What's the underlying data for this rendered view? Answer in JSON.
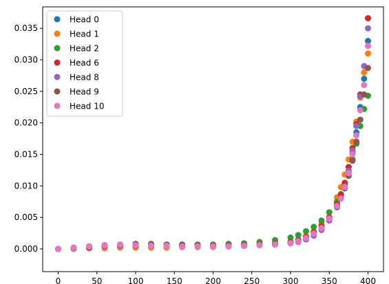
{
  "chart_data": {
    "type": "scatter",
    "x": [
      0,
      20,
      40,
      60,
      80,
      100,
      120,
      140,
      160,
      180,
      200,
      220,
      240,
      260,
      280,
      300,
      310,
      320,
      330,
      340,
      350,
      360,
      365,
      370,
      375,
      380,
      385,
      390,
      395,
      400
    ],
    "series": [
      {
        "name": "Head 0",
        "color": "#1f77b4",
        "values": [
          0,
          0.0001,
          0.0002,
          0.0003,
          0.0003,
          0.0003,
          0.0003,
          0.0003,
          0.0003,
          0.0003,
          0.0004,
          0.0004,
          0.0005,
          0.0006,
          0.0008,
          0.0011,
          0.0014,
          0.0019,
          0.0026,
          0.0036,
          0.005,
          0.007,
          0.0084,
          0.0102,
          0.0124,
          0.0152,
          0.0185,
          0.0225,
          0.027,
          0.033
        ]
      },
      {
        "name": "Head 1",
        "color": "#ff7f0e",
        "values": [
          0,
          0,
          0.0001,
          0.0001,
          0.0002,
          0.0002,
          0.0002,
          0.0002,
          0.0003,
          0.0003,
          0.0003,
          0.0004,
          0.0005,
          0.0006,
          0.0008,
          0.0011,
          0.0015,
          0.002,
          0.0028,
          0.004,
          0.0058,
          0.0082,
          0.0098,
          0.0118,
          0.0142,
          0.017,
          0.0202,
          0.024,
          0.028,
          0.031
        ]
      },
      {
        "name": "Head 2",
        "color": "#2ca02c",
        "values": [
          0,
          0.0001,
          0.0003,
          0.0005,
          0.0006,
          0.0007,
          0.0007,
          0.0007,
          0.0007,
          0.0007,
          0.0007,
          0.0008,
          0.0009,
          0.0011,
          0.0014,
          0.0018,
          0.0022,
          0.0028,
          0.0035,
          0.0045,
          0.0058,
          0.0075,
          0.0087,
          0.0102,
          0.012,
          0.0142,
          0.0167,
          0.0195,
          0.0222,
          0.0243
        ]
      },
      {
        "name": "Head 6",
        "color": "#d62728",
        "values": [
          0,
          0.0001,
          0.0002,
          0.0004,
          0.0005,
          0.0005,
          0.0005,
          0.0005,
          0.0005,
          0.0005,
          0.0005,
          0.0005,
          0.0006,
          0.0007,
          0.0008,
          0.0011,
          0.0014,
          0.0019,
          0.0026,
          0.0036,
          0.005,
          0.0071,
          0.0086,
          0.0105,
          0.013,
          0.016,
          0.0198,
          0.0245,
          0.029,
          0.0366
        ]
      },
      {
        "name": "Head 8",
        "color": "#9467bd",
        "values": [
          0,
          0.0001,
          0.0003,
          0.0004,
          0.0005,
          0.0005,
          0.0005,
          0.0005,
          0.0005,
          0.0005,
          0.0005,
          0.0005,
          0.0005,
          0.0006,
          0.0007,
          0.0009,
          0.0011,
          0.0015,
          0.0021,
          0.003,
          0.0045,
          0.0066,
          0.008,
          0.0099,
          0.0124,
          0.0156,
          0.0195,
          0.0242,
          0.029,
          0.035
        ]
      },
      {
        "name": "Head 9",
        "color": "#8c564b",
        "values": [
          0,
          0.0002,
          0.0004,
          0.0006,
          0.0007,
          0.0008,
          0.0008,
          0.0007,
          0.0007,
          0.0006,
          0.0006,
          0.0006,
          0.0007,
          0.0008,
          0.0009,
          0.0011,
          0.0014,
          0.0018,
          0.0025,
          0.0034,
          0.0048,
          0.0067,
          0.008,
          0.0096,
          0.0116,
          0.014,
          0.017,
          0.0205,
          0.0245,
          0.0287
        ]
      },
      {
        "name": "Head 10",
        "color": "#e377c2",
        "values": [
          0,
          0.0002,
          0.0004,
          0.0006,
          0.0007,
          0.0006,
          0.0005,
          0.0005,
          0.0004,
          0.0004,
          0.0004,
          0.0004,
          0.0005,
          0.0006,
          0.0007,
          0.0009,
          0.0012,
          0.0017,
          0.0024,
          0.0033,
          0.0048,
          0.0068,
          0.008,
          0.0098,
          0.012,
          0.015,
          0.018,
          0.022,
          0.026,
          0.0322
        ]
      }
    ],
    "xlim": [
      -20,
      420
    ],
    "ylim": [
      -0.0036,
      0.0384
    ],
    "xticks": [
      0,
      50,
      100,
      150,
      200,
      250,
      300,
      350,
      400
    ],
    "yticks": [
      {
        "value": 0,
        "label": "0.000"
      },
      {
        "value": 0.005,
        "label": "0.005"
      },
      {
        "value": 0.01,
        "label": "0.010"
      },
      {
        "value": 0.015,
        "label": "0.015"
      },
      {
        "value": 0.02,
        "label": "0.020"
      },
      {
        "value": 0.025,
        "label": "0.025"
      },
      {
        "value": 0.03,
        "label": "0.030"
      },
      {
        "value": 0.035,
        "label": "0.035"
      }
    ],
    "legend": "upper-left"
  }
}
